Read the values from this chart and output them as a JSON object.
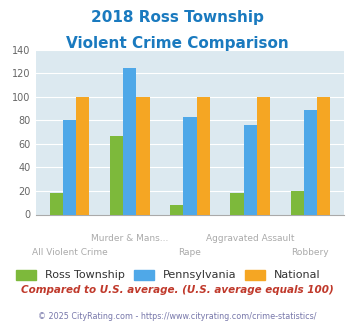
{
  "title_line1": "2018 Ross Township",
  "title_line2": "Violent Crime Comparison",
  "title_color": "#1a7abf",
  "categories": [
    "All Violent Crime",
    "Murder & Mans...",
    "Rape",
    "Aggravated Assault",
    "Robbery"
  ],
  "tick_labels_top": [
    "",
    "Murder & Mans...",
    "",
    "Aggravated Assault",
    ""
  ],
  "tick_labels_bot": [
    "All Violent Crime",
    "",
    "Rape",
    "",
    "Robbery"
  ],
  "ross_values": [
    18,
    67,
    8,
    18,
    20
  ],
  "penn_values": [
    80,
    124,
    83,
    76,
    89
  ],
  "national_values": [
    100,
    100,
    100,
    100,
    100
  ],
  "ross_color": "#7db93b",
  "penn_color": "#4fa8e8",
  "national_color": "#f5a623",
  "ylim": [
    0,
    140
  ],
  "yticks": [
    0,
    20,
    40,
    60,
    80,
    100,
    120,
    140
  ],
  "legend_labels": [
    "Ross Township",
    "Pennsylvania",
    "National"
  ],
  "footnote1": "Compared to U.S. average. (U.S. average equals 100)",
  "footnote2": "© 2025 CityRating.com - https://www.cityrating.com/crime-statistics/",
  "footnote1_color": "#c0392b",
  "footnote2_color": "#7777aa",
  "plot_bg": "#dce9f0"
}
